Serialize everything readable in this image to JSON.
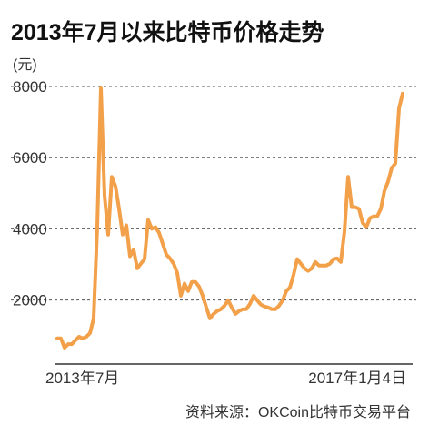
{
  "chart_data": {
    "type": "line",
    "title": "2013年7月以来比特币价格走势",
    "y_label": "(元)",
    "source": "资料来源：OKCoin比特币交易平台",
    "categories": [
      "2013年7月",
      null,
      null,
      null,
      null,
      null,
      null,
      null,
      null,
      null,
      null,
      null,
      null,
      null,
      null,
      null,
      null,
      null,
      null,
      null,
      null,
      null,
      null,
      null,
      null,
      null,
      null,
      null,
      null,
      null,
      null,
      null,
      null,
      null,
      null,
      null,
      null,
      null,
      null,
      null,
      null,
      null,
      null,
      null,
      null,
      null,
      null,
      null,
      null,
      null,
      null,
      null,
      null,
      null,
      null,
      null,
      null,
      null,
      null,
      null,
      null,
      null,
      null,
      null,
      null,
      null,
      null,
      null,
      null,
      null,
      null,
      null,
      null,
      null,
      null,
      null,
      null,
      null,
      null,
      null,
      null,
      null,
      null,
      null,
      null,
      null,
      null,
      null,
      null,
      null,
      null,
      null,
      null,
      null,
      null,
      "2017年1月4日"
    ],
    "series": [
      {
        "color": "#f2a049",
        "values": [
          920,
          920,
          660,
          760,
          760,
          870,
          970,
          920,
          970,
          1070,
          1480,
          4050,
          7950,
          4940,
          3840,
          5460,
          5200,
          4560,
          3840,
          4100,
          3230,
          3410,
          2890,
          3020,
          3150,
          4250,
          4000,
          4050,
          3890,
          3580,
          3280,
          3170,
          3020,
          2760,
          2120,
          2460,
          2250,
          2510,
          2510,
          2380,
          2120,
          1790,
          1480,
          1610,
          1690,
          1740,
          1840,
          1990,
          1790,
          1610,
          1690,
          1740,
          1740,
          1890,
          2120,
          1990,
          1870,
          1820,
          1790,
          1740,
          1740,
          1840,
          1990,
          2250,
          2350,
          2710,
          3150,
          3020,
          2890,
          2820,
          2890,
          3070,
          2970,
          2970,
          2970,
          3020,
          3150,
          3170,
          3070,
          3920,
          5460,
          4610,
          4610,
          4560,
          4170,
          4050,
          4300,
          4350,
          4350,
          4560,
          5070,
          5330,
          5710,
          5840,
          7380,
          7800
        ]
      }
    ],
    "ylim": [
      200,
      8000
    ],
    "yticks": [
      2000,
      4000,
      6000,
      8000
    ],
    "grid": true
  }
}
